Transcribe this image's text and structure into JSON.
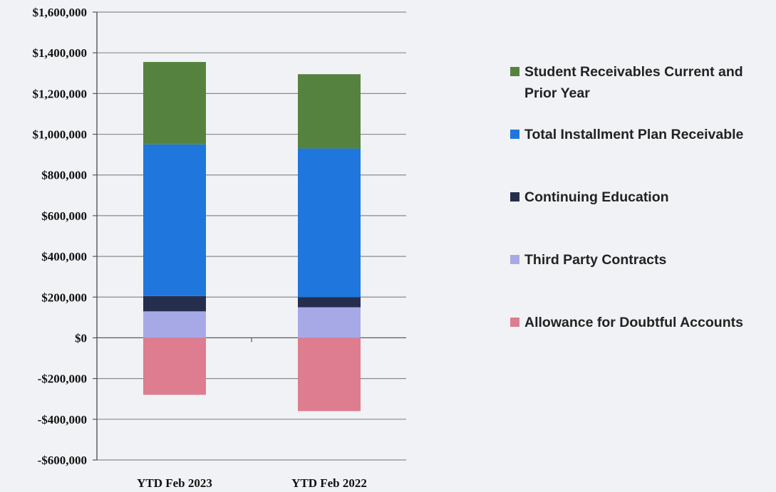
{
  "chart_data": {
    "type": "bar",
    "stacked": true,
    "categories": [
      "YTD Feb 2023",
      "YTD Feb 2022"
    ],
    "series": [
      {
        "name": "Allowance for Doubtful Accounts",
        "color": "#dd7d8f",
        "values": [
          -280000,
          -360000
        ]
      },
      {
        "name": "Third Party Contracts",
        "color": "#a7a9e7",
        "values": [
          130000,
          150000
        ]
      },
      {
        "name": "Continuing Education",
        "color": "#262e4e",
        "values": [
          75000,
          50000
        ]
      },
      {
        "name": "Total Installment Plan Receivable",
        "color": "#1f77dd",
        "values": [
          745000,
          730000
        ]
      },
      {
        "name": "Student Receivables Current and Prior Year",
        "color": "#55833f",
        "values": [
          405000,
          365000
        ]
      }
    ],
    "ylim": [
      -600000,
      1600000
    ],
    "yticks": [
      1600000,
      1400000,
      1200000,
      1000000,
      800000,
      600000,
      400000,
      200000,
      0,
      -200000,
      -400000,
      -600000
    ],
    "ytick_labels": [
      "$1,600,000",
      "$1,400,000",
      "$1,200,000",
      "$1,000,000",
      "$800,000",
      "$600,000",
      "$400,000",
      "$200,000",
      "$0",
      "-$200,000",
      "-$400,000",
      "-$600,000"
    ],
    "grid": true,
    "legend_position": "right",
    "legend_order": [
      "Student Receivables Current and Prior Year",
      "Total Installment Plan Receivable",
      "Continuing Education",
      "Third Party Contracts",
      "Allowance for Doubtful Accounts"
    ]
  }
}
